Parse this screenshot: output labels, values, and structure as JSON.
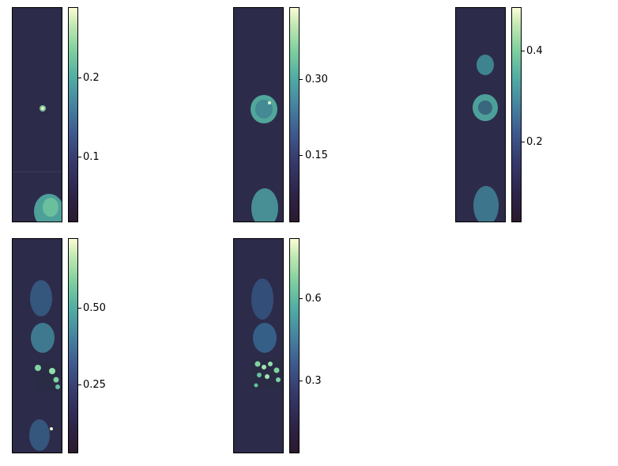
{
  "panels": [
    {
      "row": 1,
      "col": 1,
      "colorbar_ticks": [
        {
          "label": "0.2",
          "value": 0.2
        },
        {
          "label": "0.1",
          "value": 0.1
        }
      ],
      "colorbar_max": 0.28
    },
    {
      "row": 1,
      "col": 2,
      "colorbar_ticks": [
        {
          "label": "0.30",
          "value": 0.3
        },
        {
          "label": "0.15",
          "value": 0.15
        }
      ],
      "colorbar_max": 0.44
    },
    {
      "row": 1,
      "col": 3,
      "colorbar_ticks": [
        {
          "label": "0.4",
          "value": 0.4
        },
        {
          "label": "0.2",
          "value": 0.2
        }
      ],
      "colorbar_max": 0.5
    },
    {
      "row": 2,
      "col": 1,
      "colorbar_ticks": [
        {
          "label": "0.50",
          "value": 0.5
        },
        {
          "label": "0.25",
          "value": 0.25
        }
      ],
      "colorbar_max": 0.74
    },
    {
      "row": 2,
      "col": 2,
      "colorbar_ticks": [
        {
          "label": "0.6",
          "value": 0.6
        },
        {
          "label": "0.3",
          "value": 0.3
        }
      ],
      "colorbar_max": 0.82
    }
  ],
  "colors": {
    "background_field": "#2d2b4a",
    "colormap_low": "#2a1a2e",
    "colormap_mid": "#52aea3",
    "colormap_high": "#fbfcd6"
  }
}
